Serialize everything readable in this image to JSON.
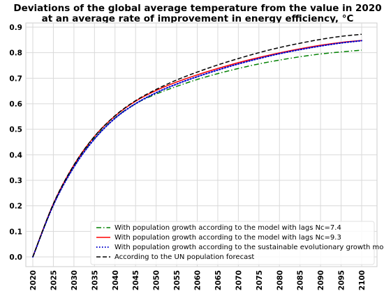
{
  "chart_data": {
    "type": "line",
    "title": "Deviations of the global average temperature from the value in 2020",
    "subtitle": "at an average rate of improvement in energy efficiency, °C",
    "xlabel": "",
    "ylabel": "",
    "xlim": [
      2020,
      2100
    ],
    "ylim": [
      0,
      0.9
    ],
    "xticks": [
      "2020",
      "2025",
      "2030",
      "2035",
      "2040",
      "2045",
      "2050",
      "2055",
      "2060",
      "2065",
      "2070",
      "2075",
      "2080",
      "2085",
      "2090",
      "2095",
      "2100"
    ],
    "yticks": [
      "0.0",
      "0.1",
      "0.2",
      "0.3",
      "0.4",
      "0.5",
      "0.6",
      "0.7",
      "0.8",
      "0.9"
    ],
    "grid": true,
    "legend_position": "bottom-right",
    "x": [
      2020,
      2025,
      2030,
      2035,
      2040,
      2045,
      2050,
      2055,
      2060,
      2065,
      2070,
      2075,
      2080,
      2085,
      2090,
      2095,
      2100
    ],
    "series": [
      {
        "name": "With population growth according to the model with lags Nc=7.4",
        "color": "#008000",
        "dash": "dashdot",
        "values": [
          0.0,
          0.205,
          0.355,
          0.465,
          0.545,
          0.6,
          0.638,
          0.668,
          0.695,
          0.718,
          0.738,
          0.756,
          0.771,
          0.784,
          0.795,
          0.803,
          0.81
        ]
      },
      {
        "name": "With population growth according to the model with lags  Nc=9.3",
        "color": "#ff0000",
        "dash": "solid",
        "values": [
          0.0,
          0.208,
          0.36,
          0.472,
          0.552,
          0.61,
          0.652,
          0.685,
          0.713,
          0.738,
          0.761,
          0.781,
          0.799,
          0.815,
          0.829,
          0.84,
          0.848
        ]
      },
      {
        "name": "With population growth according to the sustainable evolutionary growth model",
        "color": "#0000cc",
        "dash": "dotted",
        "values": [
          0.0,
          0.203,
          0.352,
          0.462,
          0.543,
          0.6,
          0.643,
          0.677,
          0.706,
          0.732,
          0.756,
          0.777,
          0.796,
          0.812,
          0.826,
          0.838,
          0.847
        ]
      },
      {
        "name": "According to the UN population forecast",
        "color": "#000000",
        "dash": "dashed",
        "values": [
          0.0,
          0.208,
          0.36,
          0.472,
          0.553,
          0.612,
          0.656,
          0.693,
          0.724,
          0.752,
          0.777,
          0.8,
          0.82,
          0.837,
          0.852,
          0.864,
          0.872
        ]
      }
    ]
  }
}
